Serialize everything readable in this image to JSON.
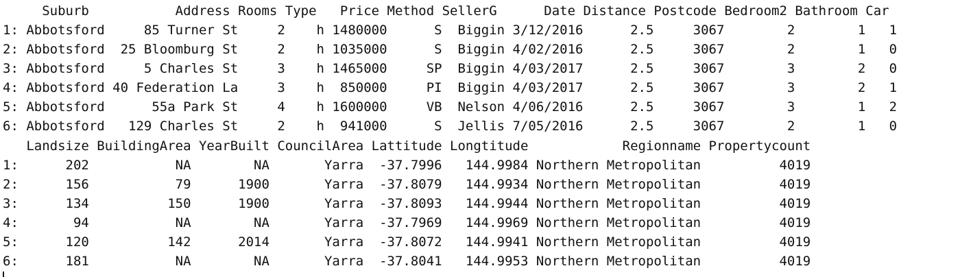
{
  "table1": {
    "header": "     Suburb           Address Rooms Type   Price Method SellerG      Date Distance Postcode Bedroom2 Bathroom Car",
    "rows": [
      "1: Abbotsford     85 Turner St     2    h 1480000      S  Biggin 3/12/2016      2.5     3067        2        1   1",
      "2: Abbotsford  25 Bloomburg St     2    h 1035000      S  Biggin 4/02/2016      2.5     3067        2        1   0",
      "3: Abbotsford     5 Charles St     3    h 1465000     SP  Biggin 4/03/2017      2.5     3067        3        2   0",
      "4: Abbotsford 40 Federation La     3    h  850000     PI  Biggin 4/03/2017      2.5     3067        3        2   1",
      "5: Abbotsford      55a Park St     4    h 1600000     VB  Nelson 4/06/2016      2.5     3067        3        1   2",
      "6: Abbotsford   129 Charles St     2    h  941000      S  Jellis 7/05/2016      2.5     3067        2        1   0"
    ]
  },
  "table2": {
    "header": "   Landsize BuildingArea YearBuilt CouncilArea Lattitude Longtitude            Regionname Propertycount",
    "rows": [
      "1:      202           NA        NA       Yarra  -37.7996   144.9984 Northern Metropolitan          4019",
      "2:      156           79      1900       Yarra  -37.8079   144.9934 Northern Metropolitan          4019",
      "3:      134          150      1900       Yarra  -37.8093   144.9944 Northern Metropolitan          4019",
      "4:       94           NA        NA       Yarra  -37.7969   144.9969 Northern Metropolitan          4019",
      "5:      120          142      2014       Yarra  -37.8072   144.9941 Northern Metropolitan          4019",
      "6:      181           NA        NA       Yarra  -37.8041   144.9953 Northern Metropolitan          4019"
    ]
  }
}
